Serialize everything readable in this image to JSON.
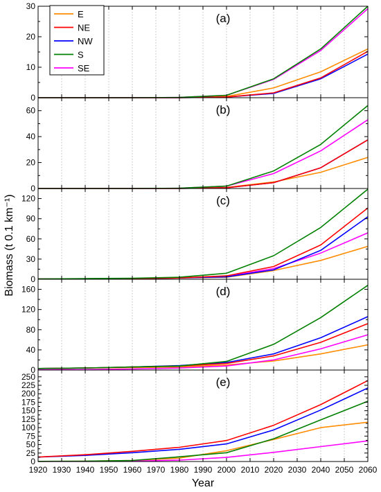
{
  "chart_data": {
    "type": "line",
    "xlabel": "Year",
    "ylabel": "Biomass (t 0.1 km⁻¹)",
    "xlim": [
      1920,
      2060
    ],
    "x_ticks": [
      1920,
      1930,
      1940,
      1950,
      1960,
      1970,
      1980,
      1990,
      2000,
      2010,
      2020,
      2030,
      2040,
      2050,
      2060
    ],
    "x_grid": "dotted vertical lines every 10 years",
    "legend": {
      "placement": "top-left",
      "entries": [
        "E",
        "NE",
        "NW",
        "S",
        "SE"
      ]
    },
    "colors": {
      "E": "#ff8c00",
      "NE": "#ff0000",
      "NW": "#0000ff",
      "S": "#008000",
      "SE": "#ff00ff"
    },
    "x": [
      1920,
      1940,
      1960,
      1980,
      2000,
      2020,
      2040,
      2060
    ],
    "panels": [
      {
        "label": "(a)",
        "ylim": [
          0,
          30
        ],
        "y_ticks": [
          0,
          10,
          20,
          30
        ],
        "series": [
          {
            "name": "E",
            "values": [
              0,
              0,
              0,
              0,
              0.4,
              3.2,
              8.5,
              16
            ]
          },
          {
            "name": "NE",
            "values": [
              0,
              0,
              0,
              0,
              0.2,
              1.6,
              6.5,
              15.2
            ]
          },
          {
            "name": "NW",
            "values": [
              0,
              0,
              0,
              0,
              0.2,
              1.4,
              6.2,
              14.3
            ]
          },
          {
            "name": "S",
            "values": [
              0,
              0,
              0,
              0.1,
              0.8,
              6.2,
              16,
              30
            ]
          },
          {
            "name": "SE",
            "values": [
              0,
              0,
              0,
              0.1,
              0.8,
              6,
              15.5,
              29.2
            ]
          }
        ]
      },
      {
        "label": "(b)",
        "ylim": [
          0,
          70
        ],
        "y_ticks": [
          0,
          20,
          40,
          60
        ],
        "series": [
          {
            "name": "E",
            "values": [
              0,
              0,
              0,
              0,
              0.8,
              5,
              12.5,
              24
            ]
          },
          {
            "name": "NE",
            "values": [
              0,
              0,
              0,
              0,
              0.6,
              4.5,
              16,
              37.5
            ]
          },
          {
            "name": "NW",
            "values": [
              0,
              0,
              0,
              0,
              0.6,
              4.5,
              16,
              37.5
            ]
          },
          {
            "name": "S",
            "values": [
              0,
              0,
              0,
              0.2,
              1.8,
              13.5,
              34,
              64
            ]
          },
          {
            "name": "SE",
            "values": [
              0,
              0,
              0,
              0.2,
              1.8,
              11.5,
              29,
              53
            ]
          }
        ]
      },
      {
        "label": "(c)",
        "ylim": [
          0,
          135
        ],
        "y_ticks": [
          0,
          30,
          60,
          90,
          120
        ],
        "series": [
          {
            "name": "E",
            "values": [
              0.5,
              0.5,
              1,
              2,
              3,
              13,
              28,
              49
            ]
          },
          {
            "name": "NE",
            "values": [
              0.5,
              0.5,
              1,
              2,
              5,
              19,
              51,
              106
            ]
          },
          {
            "name": "NW",
            "values": [
              0.5,
              0.5,
              1,
              2,
              3.5,
              14,
              43,
              93
            ]
          },
          {
            "name": "S",
            "values": [
              0.5,
              1,
              1.5,
              3,
              9,
              35,
              77,
              134
            ]
          },
          {
            "name": "SE",
            "values": [
              0.5,
              0.5,
              1,
              2,
              4,
              16,
              39,
              69
            ]
          }
        ]
      },
      {
        "label": "(d)",
        "ylim": [
          0,
          180
        ],
        "y_ticks": [
          0,
          40,
          80,
          120,
          160
        ],
        "series": [
          {
            "name": "E",
            "values": [
              3,
              4,
              5,
              6,
              10,
              18,
              32,
              50
            ]
          },
          {
            "name": "NE",
            "values": [
              3,
              4,
              6,
              8,
              13,
              28,
              55,
              92
            ]
          },
          {
            "name": "NW",
            "values": [
              3,
              4,
              6,
              9,
              15,
              32,
              64,
              106
            ]
          },
          {
            "name": "S",
            "values": [
              3,
              4,
              6,
              8,
              17,
              51,
              104,
              168
            ]
          },
          {
            "name": "SE",
            "values": [
              0.5,
              1,
              2,
              4,
              8,
              20,
              42,
              70
            ]
          }
        ]
      },
      {
        "label": "(e)",
        "ylim": [
          0,
          270
        ],
        "y_ticks": [
          0,
          25,
          50,
          75,
          100,
          125,
          150,
          175,
          200,
          225,
          250
        ],
        "series": [
          {
            "name": "E",
            "values": [
              0.5,
              1,
              3,
              10,
              32,
              65,
              100,
              116
            ]
          },
          {
            "name": "NE",
            "values": [
              13,
              20,
              30,
              42,
              62,
              107,
              168,
              239
            ]
          },
          {
            "name": "NW",
            "values": [
              13,
              18,
              26,
              36,
              52,
              93,
              152,
              217
            ]
          },
          {
            "name": "S",
            "values": [
              0.5,
              1,
              3,
              14,
              26,
              67,
              123,
              178
            ]
          },
          {
            "name": "SE",
            "values": [
              0.5,
              0.5,
              1,
              4,
              12,
              27,
              44,
              61
            ]
          }
        ]
      }
    ]
  }
}
